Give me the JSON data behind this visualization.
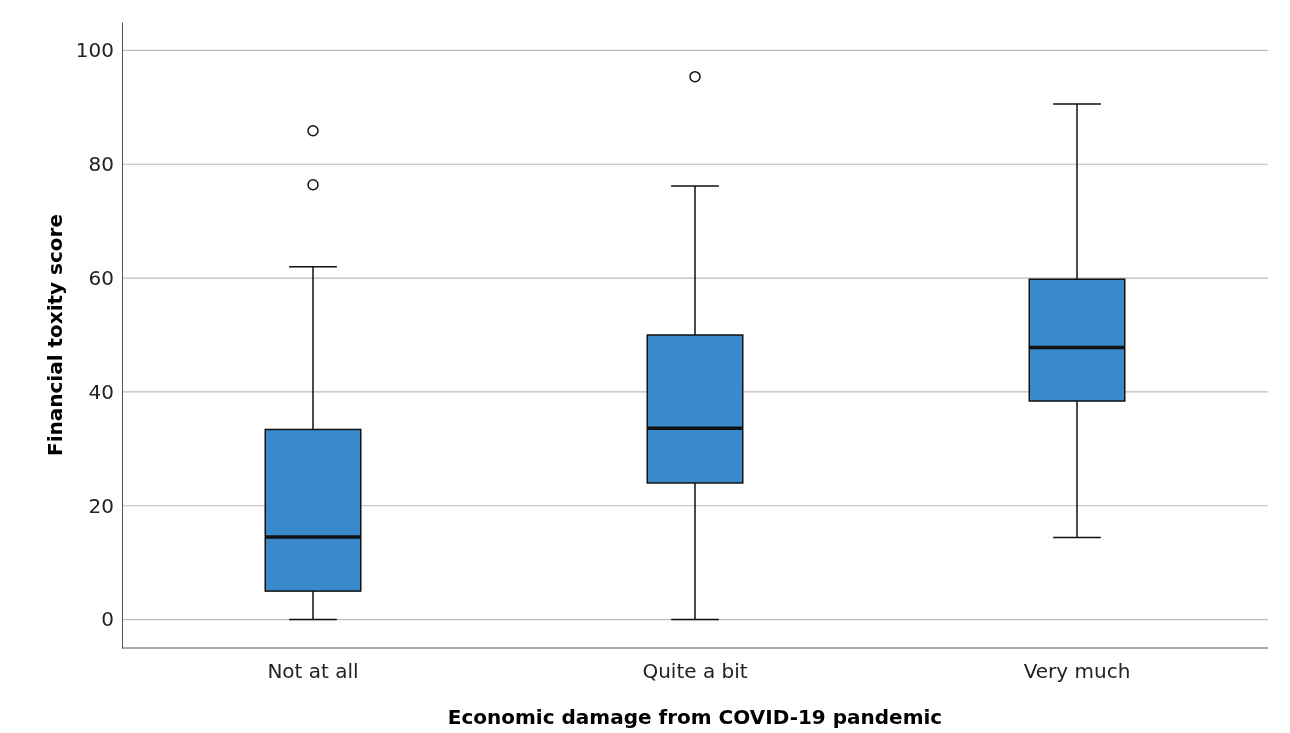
{
  "chart_data": {
    "type": "box",
    "xlabel": "Economic damage from COVID-19 pandemic",
    "ylabel": "Financial toxity score",
    "categories": [
      "Not at all",
      "Quite a bit",
      "Very much"
    ],
    "color": "#3a89cb",
    "boxes": [
      {
        "low": 0,
        "q1": 5,
        "median": 14.5,
        "q3": 33.4,
        "high": 62,
        "outliers": [
          76.4,
          85.9
        ]
      },
      {
        "low": 0,
        "q1": 24,
        "median": 33.6,
        "q3": 50,
        "high": 76.2,
        "outliers": [
          95.4
        ]
      },
      {
        "low": 14.4,
        "q1": 38.4,
        "median": 47.8,
        "q3": 59.8,
        "high": 90.6
      }
    ],
    "ylim": [
      -5,
      105
    ],
    "yticks": [
      0,
      20,
      40,
      60,
      80,
      100
    ],
    "grid": "y"
  }
}
